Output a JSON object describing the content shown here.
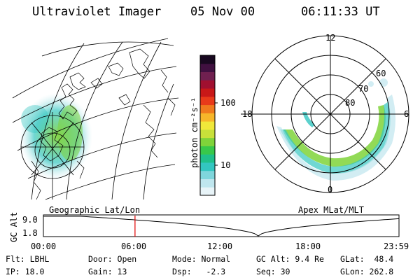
{
  "header": {
    "title": "Ultraviolet Imager",
    "date": "05 Nov 00",
    "time": "06:11:33 UT"
  },
  "geo_map": {
    "label": "Geographic Lat/Lon"
  },
  "colorbar": {
    "unit_label": "photon cm⁻²s⁻¹",
    "ticks": [
      "100",
      "10"
    ],
    "colors": [
      "#e8f4f8",
      "#bfe6ee",
      "#7fd6dc",
      "#33c6c0",
      "#20c08a",
      "#38c84a",
      "#7fd33a",
      "#c8e03a",
      "#f0e83a",
      "#f7b62a",
      "#f07a1e",
      "#e83a1a",
      "#c81818",
      "#a01030",
      "#702050",
      "#401040",
      "#180820"
    ]
  },
  "polar_plot": {
    "label": "Apex MLat/MLT",
    "mlt_labels": {
      "top": "12",
      "left": "18",
      "right": "6",
      "bottom": "0"
    },
    "lat_labels": [
      "60",
      "70",
      "80"
    ]
  },
  "altitude_plot": {
    "ylabel": "GC Alt",
    "yticks": [
      "9.0",
      "1.8"
    ],
    "xticks": [
      "00:00",
      "06:00",
      "12:00",
      "18:00",
      "23:59"
    ],
    "marker_time": "06:11"
  },
  "info": {
    "flt": "Flt: LBHL",
    "door": "Door: Open",
    "mode": "Mode: Normal",
    "gcalt": "GC Alt: 9.4 Re",
    "glat": "GLat:  48.4",
    "ip": "IP: 18.0",
    "gain": "Gain: 13",
    "dsp": "Dsp:   -2.3",
    "seq": "Seq: 30",
    "glon": "GLon: 262.8"
  }
}
